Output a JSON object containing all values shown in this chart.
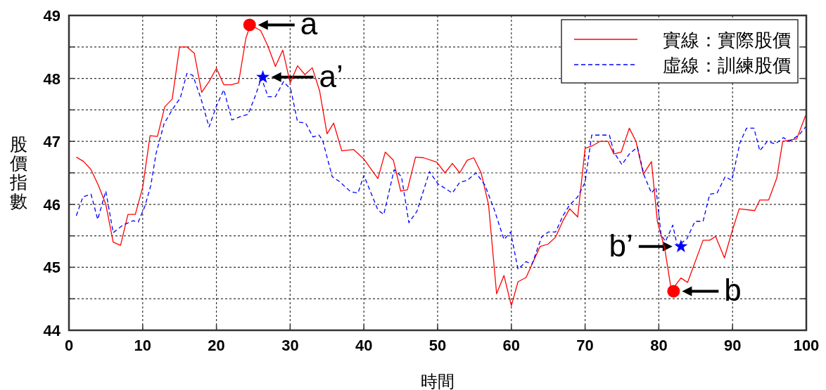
{
  "chart_data": {
    "type": "line",
    "xlabel": "時間",
    "ylabel": "股價指數",
    "xlim": [
      0,
      100
    ],
    "ylim": [
      44,
      49
    ],
    "xticks": [
      0,
      10,
      20,
      30,
      40,
      50,
      60,
      70,
      80,
      90,
      100
    ],
    "yticks": [
      44,
      {
        "value": 44.5,
        "label": null
      },
      45,
      {
        "value": 45.5,
        "label": null
      },
      46,
      {
        "value": 46.5,
        "label": null
      },
      47,
      {
        "value": 47.5,
        "label": null
      },
      48,
      {
        "value": 48.5,
        "label": null
      },
      49
    ],
    "grid": true,
    "legend": "top right",
    "series": [
      {
        "name": "實線：實際股價",
        "color": "#ff0000",
        "line_style": "solid",
        "x": [
          1,
          2,
          3,
          4,
          5,
          6,
          7,
          8,
          9,
          10,
          11,
          12,
          13,
          14,
          15,
          16,
          17,
          18,
          19,
          20,
          21,
          22,
          23,
          24,
          24.6,
          26,
          27,
          28,
          29,
          30,
          31,
          32,
          33,
          34,
          35,
          35.9,
          37,
          38.6,
          40,
          41.9,
          42.9,
          44,
          45,
          45.9,
          47,
          48.1,
          49.9,
          51,
          52,
          53,
          54,
          54.9,
          55.9,
          56.9,
          58,
          59,
          60,
          60.9,
          62,
          63.9,
          65,
          66,
          67,
          67.9,
          69,
          70,
          71,
          72,
          73.1,
          73.9,
          74.9,
          76,
          76.9,
          77.9,
          79,
          79.8,
          80.8,
          81.7,
          83,
          83.9,
          86,
          86.9,
          87.7,
          88.9,
          89.9,
          90.9,
          93,
          93.7,
          94.9,
          96,
          96.8,
          98.7,
          99.9
        ],
        "values": [
          46.75,
          46.68,
          46.55,
          46.3,
          46.0,
          45.4,
          45.35,
          45.84,
          45.84,
          46.27,
          47.09,
          47.08,
          47.55,
          47.67,
          48.5,
          48.5,
          48.4,
          47.78,
          47.95,
          48.16,
          47.9,
          47.9,
          47.93,
          48.64,
          48.85,
          48.76,
          48.51,
          48.19,
          48.45,
          47.93,
          48.2,
          48.06,
          48.17,
          47.8,
          47.12,
          47.29,
          46.85,
          46.87,
          46.72,
          46.41,
          46.83,
          46.7,
          46.21,
          46.23,
          46.75,
          46.74,
          46.67,
          46.5,
          46.65,
          46.5,
          46.7,
          46.74,
          46.5,
          46.0,
          44.58,
          44.87,
          44.39,
          44.77,
          44.84,
          45.33,
          45.37,
          45.48,
          45.74,
          45.93,
          45.8,
          46.89,
          46.93,
          47.0,
          47.0,
          46.8,
          46.83,
          47.21,
          47.0,
          46.48,
          46.68,
          45.73,
          45.3,
          44.63,
          44.83,
          44.76,
          45.43,
          45.43,
          45.49,
          45.15,
          45.56,
          45.93,
          45.9,
          46.07,
          46.07,
          46.42,
          47.0,
          47.04,
          47.41
        ]
      },
      {
        "name": "虛線：訓練股價",
        "color": "#0000ff",
        "line_style": "dashed",
        "x": [
          1,
          1.9,
          3,
          3.9,
          5,
          6,
          7.3,
          8.7,
          9.4,
          10.3,
          11.1,
          11.8,
          12.9,
          14.1,
          15.1,
          16,
          16.8,
          17.9,
          19,
          20,
          21,
          22.1,
          23.4,
          24.3,
          25.3,
          26.1,
          27,
          28,
          29.1,
          30.1,
          31,
          32.1,
          33.1,
          33.9,
          34.4,
          35.7,
          36.7,
          38.2,
          39.2,
          40,
          41.9,
          42.7,
          44.1,
          45.1,
          46.1,
          47.2,
          48.9,
          50,
          52,
          53,
          54,
          55.2,
          56.4,
          57.7,
          59,
          59.9,
          60.9,
          62,
          62.8,
          64.1,
          65,
          66,
          67,
          67.9,
          69,
          70,
          70.9,
          72.5,
          73.3,
          73.9,
          75,
          76,
          77.1,
          78,
          79,
          79.6,
          80.3,
          80.9,
          81.9,
          82.5,
          83.8,
          84.9,
          86,
          86.9,
          87.9,
          89,
          89.9,
          91,
          91.9,
          92.9,
          93.7,
          94.7,
          95.8,
          96.9,
          97.7,
          99,
          99.9
        ],
        "values": [
          45.82,
          46.12,
          46.16,
          45.76,
          46.21,
          45.55,
          45.67,
          45.74,
          45.72,
          45.97,
          46.3,
          46.8,
          47.28,
          47.52,
          47.69,
          48.08,
          48.05,
          47.68,
          47.23,
          47.56,
          47.82,
          47.34,
          47.4,
          47.43,
          47.73,
          48.01,
          47.71,
          47.71,
          47.95,
          47.82,
          47.31,
          47.29,
          47.07,
          47.1,
          47.02,
          46.44,
          46.36,
          46.2,
          46.18,
          46.46,
          45.91,
          45.84,
          46.55,
          46.44,
          45.71,
          45.89,
          46.52,
          46.33,
          46.18,
          46.35,
          46.38,
          46.5,
          46.31,
          45.91,
          45.44,
          45.56,
          44.97,
          45.09,
          45.05,
          45.48,
          45.56,
          45.56,
          45.82,
          45.99,
          46.12,
          46.35,
          47.1,
          47.1,
          47.1,
          46.83,
          46.63,
          46.8,
          46.91,
          46.46,
          46.18,
          46.27,
          45.52,
          45.41,
          45.67,
          45.34,
          45.45,
          45.73,
          45.73,
          46.16,
          46.18,
          46.44,
          46.38,
          46.98,
          47.21,
          47.21,
          46.85,
          47.0,
          46.96,
          47.06,
          47.0,
          47.1,
          47.23
        ]
      },
      {
        "type": "scatter",
        "marker": "circle",
        "color": "#ff0000",
        "x": [
          24.5,
          82
        ],
        "values": [
          48.85,
          44.62
        ]
      },
      {
        "type": "scatter",
        "marker": "star",
        "color": "#0000ff",
        "x": [
          26.3,
          83
        ],
        "values": [
          48.02,
          45.33
        ]
      }
    ],
    "annotations": [
      {
        "text": "a",
        "x": 24.5,
        "y": 48.85
      },
      {
        "text": "a’",
        "x": 26.3,
        "y": 48.02
      },
      {
        "text": "b’",
        "x": 83,
        "y": 45.33
      },
      {
        "text": "b",
        "x": 82,
        "y": 44.62
      }
    ]
  }
}
